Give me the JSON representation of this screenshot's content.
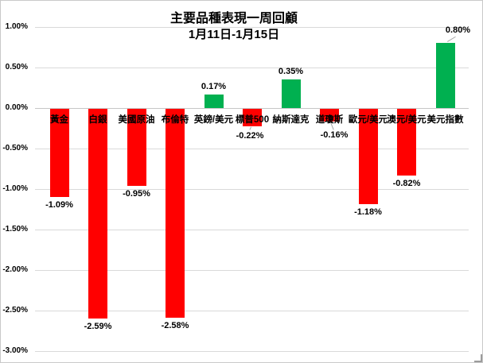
{
  "window": {
    "background": "#FFFFFF",
    "border_color": "#C9C9C9"
  },
  "chart_data": {
    "type": "bar",
    "title": "主要品種表現一周回顧",
    "subtitle": "1月11日-1月15日",
    "categories": [
      "黃金",
      "白銀",
      "美國原油",
      "布倫特",
      "英鎊/美元",
      "標普500",
      "納斯達克",
      "道瓊斯",
      "歐元/美元",
      "澳元/美元",
      "美元指數"
    ],
    "values": [
      -1.09,
      -2.59,
      -0.95,
      -2.58,
      0.17,
      -0.22,
      0.35,
      -0.16,
      -1.18,
      -0.82,
      0.8
    ],
    "data_labels": [
      "-1.09%",
      "-2.59%",
      "-0.95%",
      "-2.58%",
      "0.17%",
      "-0.22%",
      "0.35%",
      "-0.16%",
      "-1.18%",
      "-0.82%",
      "0.80%"
    ],
    "positive_color": "#00B050",
    "negative_color": "#FF0000",
    "ylim": [
      -3.0,
      1.0
    ],
    "ytick_labels": [
      "1.00%",
      "0.50%",
      "0.00%",
      "-0.50%",
      "-1.00%",
      "-1.50%",
      "-2.00%",
      "-2.50%",
      "-3.00%"
    ],
    "ytick_values": [
      1.0,
      0.5,
      0.0,
      -0.5,
      -1.0,
      -1.5,
      -2.0,
      -2.5,
      -3.0
    ],
    "grid": true,
    "legend": "none",
    "xlabel": "",
    "ylabel": "",
    "bar_label_leaders": [
      5,
      7,
      10
    ],
    "label_offsets": {
      "5": [
        -3,
        2
      ],
      "7": [
        6,
        7
      ],
      "10": [
        16,
        -6
      ]
    },
    "gridline_color": "#D9D9D9",
    "axis_line_color": "#C6C6C6",
    "leader_color": "#A6A6A6",
    "text_color": "#000000"
  }
}
